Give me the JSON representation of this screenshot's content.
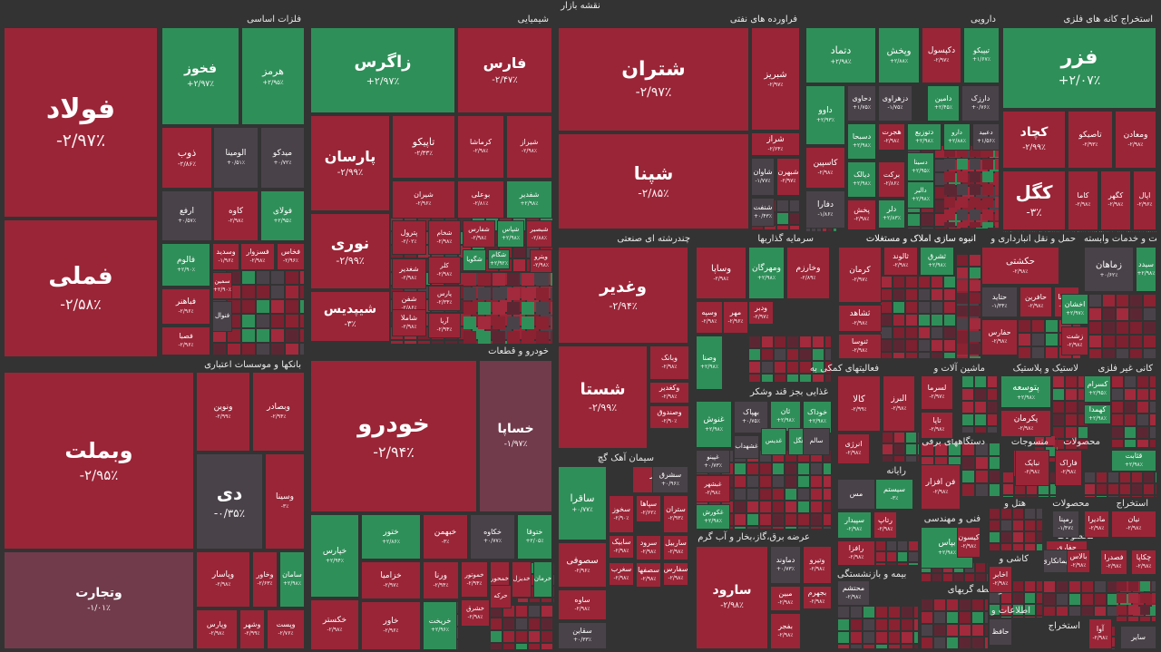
{
  "title": "نقشه بازار",
  "colors": {
    "red": "#9a2537",
    "green": "#2f8f59",
    "neutral": "#4a4249",
    "lightred": "#713b4c",
    "darkred": "#5c2733",
    "background": "#333333"
  },
  "sectors": [
    {
      "name": "فلزات اساسی"
    },
    {
      "name": "شیمیایی"
    },
    {
      "name": "فراورده های نفتی"
    },
    {
      "name": "دارویی"
    },
    {
      "name": "استخراج کانه های فلزی"
    },
    {
      "name": "بانکها و موسسات اعتباری"
    },
    {
      "name": "خودرو و قطعات"
    },
    {
      "name": "چندرشته ای صنعتی"
    },
    {
      "name": "سرمایه گذاریها"
    },
    {
      "name": "انبوه سازی املاک و مستغلات"
    },
    {
      "name": "حمل و نقل انبارداری و"
    },
    {
      "name": "زراعت و خدمات وابسته"
    },
    {
      "name": "فعالیتهای کمکی به"
    },
    {
      "name": "ماشین آلات و"
    },
    {
      "name": "لاستیک و پلاستیک"
    },
    {
      "name": "کانی غیر فلزی"
    },
    {
      "name": "غذایی بجز قند وشکر"
    },
    {
      "name": "سیمان آهک گچ"
    },
    {
      "name": "رایانه"
    },
    {
      "name": "دستگاههای برقی"
    },
    {
      "name": "منسوجات"
    },
    {
      "name": "محصولات"
    },
    {
      "name": "عرضه برق،گاز،بخار و آب گرم"
    },
    {
      "name": "فنی و مهندسی"
    },
    {
      "name": "بیمه و بازنشستگی"
    },
    {
      "name": "هتل و"
    },
    {
      "name": "محصولات"
    },
    {
      "name": "استخراج"
    },
    {
      "name": "کاشی و"
    },
    {
      "name": "محصولات"
    },
    {
      "name": "واسطه گریهای"
    },
    {
      "name": "اطلاعات و"
    },
    {
      "name": "استخراج"
    },
    {
      "name": "انبوه سازی املاک و مستغلات"
    }
  ],
  "cells": [
    {
      "sym": "فولاد",
      "pct": "-۲/۹۷٪",
      "c": "r"
    },
    {
      "sym": "فملی",
      "pct": "-۲/۵۸٪",
      "c": "r"
    },
    {
      "sym": "فخوز",
      "pct": "+۲/۹۷٪",
      "c": "g"
    },
    {
      "sym": "هرمز",
      "pct": "+۲/۹۵٪",
      "c": "g"
    },
    {
      "sym": "ذوب",
      "pct": "-۲/۸۶٪",
      "c": "r"
    },
    {
      "sym": "الومینا",
      "pct": "+۰/۵۱٪",
      "c": "n"
    },
    {
      "sym": "میدکو",
      "pct": "+۰/۷۲٪",
      "c": "n"
    },
    {
      "sym": "ارفع",
      "pct": "+۰/۵۷٪",
      "c": "n"
    },
    {
      "sym": "کاوه",
      "pct": "-۲/۹۸٪",
      "c": "r"
    },
    {
      "sym": "فولای",
      "pct": "+۲/۹۵٪",
      "c": "g"
    },
    {
      "sym": "فالوم",
      "pct": "+۲/۹۰٪",
      "c": "g"
    },
    {
      "sym": "وسدید",
      "pct": "-۱/۹۶٪",
      "c": "r"
    },
    {
      "sym": "فسزوار",
      "pct": "-۲/۹۸٪",
      "c": "r"
    },
    {
      "sym": "فخاس",
      "pct": "-۲/۹۶٪",
      "c": "r"
    },
    {
      "sym": "فباهنر",
      "pct": "-۲/۹۶٪",
      "c": "r"
    },
    {
      "sym": "سمین",
      "pct": "+۲/۹۰٪",
      "c": "r"
    },
    {
      "sym": "فنوال",
      "pct": "",
      "c": "n"
    },
    {
      "sym": "فصبا",
      "pct": "-۲/۹۶٪",
      "c": "r"
    },
    {
      "sym": "زاگرس",
      "pct": "+۲/۹۷٪",
      "c": "g"
    },
    {
      "sym": "فارس",
      "pct": "-۲/۴۷٪",
      "c": "r"
    },
    {
      "sym": "پارسان",
      "pct": "-۲/۹۹٪",
      "c": "r"
    },
    {
      "sym": "تاپیکو",
      "pct": "-۲/۳۳٪",
      "c": "r"
    },
    {
      "sym": "کرماشا",
      "pct": "-۲/۹۸٪",
      "c": "r"
    },
    {
      "sym": "شیراز",
      "pct": "-۲/۹۸٪",
      "c": "r"
    },
    {
      "sym": "شیران",
      "pct": "-۲/۹۶٪",
      "c": "r"
    },
    {
      "sym": "بوعلی",
      "pct": "-۲/۸۱٪",
      "c": "r"
    },
    {
      "sym": "شفدیر",
      "pct": "+۲/۹۸٪",
      "c": "g"
    },
    {
      "sym": "نوری",
      "pct": "-۲/۹۹٪",
      "c": "r"
    },
    {
      "sym": "پترول",
      "pct": "-۲/۰۲٪",
      "c": "r"
    },
    {
      "sym": "شغدیر",
      "pct": "-۲/۹۸٪",
      "c": "r"
    },
    {
      "sym": "شیپدیس",
      "pct": "-۳٪",
      "c": "r"
    },
    {
      "sym": "شفن",
      "pct": "-۲/۸۶٪",
      "c": "r"
    },
    {
      "sym": "شاملا",
      "pct": "-۲/۹۸٪",
      "c": "r"
    },
    {
      "sym": "شفارس",
      "pct": "-۲/۹۸٪",
      "c": "r"
    },
    {
      "sym": "شپاس",
      "pct": "+۲/۹۸٪",
      "c": "g"
    },
    {
      "sym": "شبصیر",
      "pct": "-۲/۸۸٪",
      "c": "r"
    },
    {
      "sym": "شکام",
      "pct": "+۲/۹۲٪",
      "c": "g"
    },
    {
      "sym": "شگویا",
      "pct": "",
      "c": "g"
    },
    {
      "sym": "ویترو",
      "pct": "-۲/۹۸٪",
      "c": "r"
    },
    {
      "sym": "کلر",
      "pct": "-۲/۹۸٪",
      "c": "r"
    },
    {
      "sym": "شخام",
      "pct": "-۲/۹۸٪",
      "c": "r"
    },
    {
      "sym": "پارس",
      "pct": "-۲/۳۴٪",
      "c": "r"
    },
    {
      "sym": "آریا",
      "pct": "-۲/۹۴٪",
      "c": "r"
    },
    {
      "sym": "شتران",
      "pct": "-۲/۹۷٪",
      "c": "r"
    },
    {
      "sym": "شپنا",
      "pct": "-۲/۸۵٪",
      "c": "r"
    },
    {
      "sym": "شبریز",
      "pct": "-۲/۹۷٪",
      "c": "r"
    },
    {
      "sym": "شراز",
      "pct": "-۲/۶۴٪",
      "c": "r"
    },
    {
      "sym": "شاوان",
      "pct": "-۱/۷۷٪",
      "c": "n"
    },
    {
      "sym": "شبهرن",
      "pct": "-۲/۹۷٪",
      "c": "r"
    },
    {
      "sym": "شنفت",
      "pct": "+۰/۴۳٪",
      "c": "n"
    },
    {
      "sym": "دتماد",
      "pct": "+۲/۹۸٪",
      "c": "g"
    },
    {
      "sym": "وپخش",
      "pct": "+۲/۸۸٪",
      "c": "g"
    },
    {
      "sym": "دکپسول",
      "pct": "-۲/۹۷٪",
      "c": "r"
    },
    {
      "sym": "تیپیکو",
      "pct": "+۱/۶۷٪",
      "c": "g"
    },
    {
      "sym": "داوو",
      "pct": "+۲/۹۳٪",
      "c": "g"
    },
    {
      "sym": "دحاوی",
      "pct": "+۱/۷۵٪",
      "c": "n"
    },
    {
      "sym": "دزهراوی",
      "pct": "-۱/۷۵٪",
      "c": "n"
    },
    {
      "sym": "دامین",
      "pct": "+۲/۴۵٪",
      "c": "g"
    },
    {
      "sym": "دارزک",
      "pct": "+۰/۷۶٪",
      "c": "n"
    },
    {
      "sym": "دسبحا",
      "pct": "+۲/۹۸٪",
      "c": "g"
    },
    {
      "sym": "هجرت",
      "pct": "-۲/۹۸٪",
      "c": "r"
    },
    {
      "sym": "دتوزیع",
      "pct": "+۲/۹۸٪",
      "c": "g"
    },
    {
      "sym": "دارو",
      "pct": "+۲/۸۸٪",
      "c": "g"
    },
    {
      "sym": "دعبید",
      "pct": "+۱/۵۶٪",
      "c": "n"
    },
    {
      "sym": "کاسپین",
      "pct": "-۲/۹۸٪",
      "c": "r"
    },
    {
      "sym": "دیالک",
      "pct": "+۲/۹۸٪",
      "c": "g"
    },
    {
      "sym": "برکت",
      "pct": "-۲/۸۶٪",
      "c": "r"
    },
    {
      "sym": "دسینا",
      "pct": "+۲/۹۵٪",
      "c": "g"
    },
    {
      "sym": "دفارا",
      "pct": "-۱/۸۶٪",
      "c": "n"
    },
    {
      "sym": "پخش",
      "pct": "-۲/۹۸٪",
      "c": "r"
    },
    {
      "sym": "دلر",
      "pct": "+۲/۸۳٪",
      "c": "g"
    },
    {
      "sym": "دالبر",
      "pct": "+۲/۹۸٪",
      "c": "g"
    },
    {
      "sym": "فزر",
      "pct": "+۲/۰۷٪",
      "c": "g"
    },
    {
      "sym": "کچاد",
      "pct": "-۲/۹۹٪",
      "c": "r"
    },
    {
      "sym": "تاصیکو",
      "pct": "-۲/۹۳٪",
      "c": "r"
    },
    {
      "sym": "ومعادن",
      "pct": "-۲/۹۸٪",
      "c": "r"
    },
    {
      "sym": "کگل",
      "pct": "-۳٪",
      "c": "r"
    },
    {
      "sym": "کاما",
      "pct": "-۲/۹۸٪",
      "c": "r"
    },
    {
      "sym": "کگهر",
      "pct": "-۲/۹۸٪",
      "c": "r"
    },
    {
      "sym": "اپال",
      "pct": "-۲/۹۶٪",
      "c": "r"
    },
    {
      "sym": "وبملت",
      "pct": "-۲/۹۵٪",
      "c": "r"
    },
    {
      "sym": "ونوین",
      "pct": "-۲/۹۹٪",
      "c": "r"
    },
    {
      "sym": "وبصادر",
      "pct": "-۲/۹۴٪",
      "c": "r"
    },
    {
      "sym": "دی",
      "pct": "-۰/۳۵٪",
      "c": "n"
    },
    {
      "sym": "وسینا",
      "pct": "-۳٪",
      "c": "r"
    },
    {
      "sym": "وتجارت",
      "pct": "-۱/۰۱٪",
      "c": "l"
    },
    {
      "sym": "وپاسار",
      "pct": "-۲/۹۸٪",
      "c": "r"
    },
    {
      "sym": "وخاور",
      "pct": "-۲/۶۳٪",
      "c": "r"
    },
    {
      "sym": "سامان",
      "pct": "+۲/۹۸٪",
      "c": "g"
    },
    {
      "sym": "وشهر",
      "pct": "-۲/۹۹٪",
      "c": "r"
    },
    {
      "sym": "وپست",
      "pct": "-۲/۷۶٪",
      "c": "r"
    },
    {
      "sym": "وپارس",
      "pct": "-۲/۹۸٪",
      "c": "r"
    },
    {
      "sym": "خودرو",
      "pct": "-۲/۹۴٪",
      "c": "r"
    },
    {
      "sym": "خساپا",
      "pct": "-۱/۹۷٪",
      "c": "l"
    },
    {
      "sym": "خپارس",
      "pct": "+۲/۹۴٪",
      "c": "g"
    },
    {
      "sym": "ختور",
      "pct": "+۲/۸۶٪",
      "c": "g"
    },
    {
      "sym": "خبهمن",
      "pct": "-۳٪",
      "c": "r"
    },
    {
      "sym": "خکاوه",
      "pct": "+۰/۷۷٪",
      "c": "n"
    },
    {
      "sym": "ختوقا",
      "pct": "+۲/۰۵٪",
      "c": "g"
    },
    {
      "sym": "خزامیا",
      "pct": "-۲/۹۷٪",
      "c": "r"
    },
    {
      "sym": "ورنا",
      "pct": "-۲/۹۴٪",
      "c": "r"
    },
    {
      "sym": "خموتور",
      "pct": "-۲/۹۴٪",
      "c": "r"
    },
    {
      "sym": "خمحور",
      "pct": "",
      "c": "r"
    },
    {
      "sym": "خدیزل",
      "pct": "",
      "c": "r"
    },
    {
      "sym": "خرمان",
      "pct": "",
      "c": "g"
    },
    {
      "sym": "خکستر",
      "pct": "-۲/۹۸٪",
      "c": "r"
    },
    {
      "sym": "خاور",
      "pct": "-۲/۹۶٪",
      "c": "r"
    },
    {
      "sym": "خریخت",
      "pct": "+۲/۹۶٪",
      "c": "g"
    },
    {
      "sym": "خشرق",
      "pct": "-۲/۹۸٪",
      "c": "r"
    },
    {
      "sym": "حرکه",
      "pct": "",
      "c": "r"
    },
    {
      "sym": "وغدیر",
      "pct": "-۲/۹۴٪",
      "c": "r"
    },
    {
      "sym": "شستا",
      "pct": "-۲/۹۹٪",
      "c": "r"
    },
    {
      "sym": "وبانک",
      "pct": "-۲/۹۸٪",
      "c": "r"
    },
    {
      "sym": "وکغدیر",
      "pct": "-۲/۹۸٪",
      "c": "r"
    },
    {
      "sym": "وصندوق",
      "pct": "-۲/۹۰٪",
      "c": "r"
    },
    {
      "sym": "وساپا",
      "pct": "-۲/۹۸٪",
      "c": "r"
    },
    {
      "sym": "ومهرگان",
      "pct": "+۲/۹۸٪",
      "c": "g"
    },
    {
      "sym": "وخارزم",
      "pct": "-۲/۸۹٪",
      "c": "r"
    },
    {
      "sym": "وسپه",
      "pct": "-۲/۹۸٪",
      "c": "r"
    },
    {
      "sym": "مهر",
      "pct": "-۲/۹۶٪",
      "c": "r"
    },
    {
      "sym": "ودبر",
      "pct": "-۲/۹۷٪",
      "c": "r"
    },
    {
      "sym": "وصنا",
      "pct": "+۲/۹۸٪",
      "c": "g"
    },
    {
      "sym": "کرمان",
      "pct": "-۲/۹۷٪",
      "c": "r"
    },
    {
      "sym": "ثالوند",
      "pct": "-۲/۹۸٪",
      "c": "r"
    },
    {
      "sym": "ثشرق",
      "pct": "+۲/۹۸٪",
      "c": "g"
    },
    {
      "sym": "ثشاهد",
      "pct": "-۲/۹۸٪",
      "c": "r"
    },
    {
      "sym": "ثنوسا",
      "pct": "-۲/۹۸٪",
      "c": "r"
    },
    {
      "sym": "حکشتی",
      "pct": "-۲/۹۸٪",
      "c": "r"
    },
    {
      "sym": "حتاید",
      "pct": "-۱/۳۴٪",
      "c": "n"
    },
    {
      "sym": "حافرین",
      "pct": "-۲/۹۸٪",
      "c": "r"
    },
    {
      "sym": "حسینا",
      "pct": "-۲/۹۷٪",
      "c": "r"
    },
    {
      "sym": "حفارس",
      "pct": "-۲/۹۸٪",
      "c": "r"
    },
    {
      "sym": "زماهان",
      "pct": "+۰/۶۲٪",
      "c": "n"
    },
    {
      "sym": "سیدد",
      "pct": "+۲/۹۸٪",
      "c": "g"
    },
    {
      "sym": "اخشان",
      "pct": "+۲/۹۷٪",
      "c": "g"
    },
    {
      "sym": "زشت",
      "pct": "-۲/۹۸٪",
      "c": "r"
    },
    {
      "sym": "کالا",
      "pct": "-۲/۹۹٪",
      "c": "r"
    },
    {
      "sym": "البرز",
      "pct": "-۲/۹۸٪",
      "c": "r"
    },
    {
      "sym": "انرژی",
      "pct": "-۲/۹۸٪",
      "c": "r"
    },
    {
      "sym": "لسرما",
      "pct": "-۲/۹۷٪",
      "c": "r"
    },
    {
      "sym": "تاپا",
      "pct": "-۲/۹۸٪",
      "c": "r"
    },
    {
      "sym": "پتوسعه",
      "pct": "+۲/۹۸٪",
      "c": "g"
    },
    {
      "sym": "پکرمان",
      "pct": "-۲/۹۸٪",
      "c": "r"
    },
    {
      "sym": "کسرام",
      "pct": "+۲/۹۵٪",
      "c": "g"
    },
    {
      "sym": "کهمدا",
      "pct": "+۲/۹۸٪",
      "c": "g"
    },
    {
      "sym": "فاراک",
      "pct": "-۲/۹۸٪",
      "c": "r"
    },
    {
      "sym": "قثابت",
      "pct": "+۲/۹۸٪",
      "c": "g"
    },
    {
      "sym": "غنوش",
      "pct": "+۲/۹۸٪",
      "c": "g"
    },
    {
      "sym": "بهپاک",
      "pct": "+۰/۷۵٪",
      "c": "n"
    },
    {
      "sym": "ثان",
      "pct": "+۲/۹۸٪",
      "c": "g"
    },
    {
      "sym": "خوداک",
      "pct": "+۲/۹۸٪",
      "c": "g"
    },
    {
      "sym": "غشهداب",
      "pct": "",
      "c": "n"
    },
    {
      "sym": "غگل",
      "pct": "",
      "c": "g"
    },
    {
      "sym": "غدیس",
      "pct": "",
      "c": "g"
    },
    {
      "sym": "غپینو",
      "pct": "+۰/۷۳٪",
      "c": "n"
    },
    {
      "sym": "غبشهر",
      "pct": "-۲/۹۸٪",
      "c": "r"
    },
    {
      "sym": "غکورش",
      "pct": "+۲/۹۸٪",
      "c": "g"
    },
    {
      "sym": "سالم",
      "pct": "",
      "c": "n"
    },
    {
      "sym": "سخزر",
      "pct": "-۲/۹۸٪",
      "c": "r"
    },
    {
      "sym": "سشرق",
      "pct": "+۰/۹۶٪",
      "c": "n"
    },
    {
      "sym": "ساقرا",
      "pct": "+۰/۷۷٪",
      "c": "g"
    },
    {
      "sym": "سخوز",
      "pct": "-۲/۹۰٪",
      "c": "r"
    },
    {
      "sym": "سپاها",
      "pct": "-۲/۶۲٪",
      "c": "r"
    },
    {
      "sym": "ستران",
      "pct": "-۲/۹۳٪",
      "c": "r"
    },
    {
      "sym": "ساربیل",
      "pct": "-۲/۹۸٪",
      "c": "r"
    },
    {
      "sym": "سابیک",
      "pct": "-۲/۹۸٪",
      "c": "r"
    },
    {
      "sym": "سرود",
      "pct": "-۲/۹۸٪",
      "c": "r"
    },
    {
      "sym": "سفارس",
      "pct": "-۲/۹۸٪",
      "c": "r"
    },
    {
      "sym": "سصوفی",
      "pct": "-۲/۹۶٪",
      "c": "r"
    },
    {
      "sym": "سغرب",
      "pct": "-۲/۹۸٪",
      "c": "r"
    },
    {
      "sym": "سصفها",
      "pct": "-۲/۹۸٪",
      "c": "r"
    },
    {
      "sym": "ساوه",
      "pct": "-۲/۹۸٪",
      "c": "r"
    },
    {
      "sym": "سقاین",
      "pct": "+۰/۳۳٪",
      "c": "n"
    },
    {
      "sym": "سارود",
      "pct": "-۲/۹۸٪",
      "c": "r"
    },
    {
      "sym": "دماوند",
      "pct": "+۰/۷۳٪",
      "c": "n"
    },
    {
      "sym": "وتیرو",
      "pct": "-۲/۹۸٪",
      "c": "r"
    },
    {
      "sym": "مبین",
      "pct": "-۲/۹۸٪",
      "c": "r"
    },
    {
      "sym": "بجهرم",
      "pct": "-۲/۹۸٪",
      "c": "r"
    },
    {
      "sym": "بفجر",
      "pct": "-۲/۹۸٪",
      "c": "r"
    },
    {
      "sym": "مس",
      "pct": "",
      "c": "n"
    },
    {
      "sym": "سیستم",
      "pct": "-۳٪",
      "c": "g"
    },
    {
      "sym": "سپیدار",
      "pct": "-۲/۹۸٪",
      "c": "g"
    },
    {
      "sym": "رتاپ",
      "pct": "-۲/۹۸٪",
      "c": "r"
    },
    {
      "sym": "رافزا",
      "pct": "-۲/۹۸٪",
      "c": "r"
    },
    {
      "sym": "فن افزار",
      "pct": "-۲/۹۸٪",
      "c": "r"
    },
    {
      "sym": "بترانس",
      "pct": "-۲/۹۸٪",
      "c": "r"
    },
    {
      "sym": "نبایک",
      "pct": "-۲/۹۸٪",
      "c": "r"
    },
    {
      "sym": "محتشم",
      "pct": "-۲/۹۸٪",
      "c": "n"
    },
    {
      "sym": "بپاس",
      "pct": "+۲/۹۸٪",
      "c": "g"
    },
    {
      "sym": "کیسون",
      "pct": "-۲/۹۸٪",
      "c": "r"
    },
    {
      "sym": "رمپنا",
      "pct": "-۱/۴۷٪",
      "c": "n"
    },
    {
      "sym": "مادیرا",
      "pct": "-۲/۹۸٪",
      "c": "r"
    },
    {
      "sym": "نیان",
      "pct": "-۲/۹۸٪",
      "c": "r"
    },
    {
      "sym": "حفاری",
      "pct": "-۲/۹۸٪",
      "c": "r"
    },
    {
      "sym": "پیمانکاری",
      "pct": "",
      "c": "n"
    },
    {
      "sym": "بالاس",
      "pct": "-۲/۹۸٪",
      "c": "r"
    },
    {
      "sym": "فصدرا",
      "pct": "-۲/۹۸٪",
      "c": "r"
    },
    {
      "sym": "چکاپا",
      "pct": "-۲/۹۸٪",
      "c": "r"
    },
    {
      "sym": "اخابر",
      "pct": "-۲/۹۸٪",
      "c": "r"
    },
    {
      "sym": "حافظ",
      "pct": "",
      "c": "n"
    },
    {
      "sym": "آوا",
      "pct": "-۲/۹۸٪",
      "c": "r"
    },
    {
      "sym": "سایر",
      "pct": "",
      "c": "n"
    },
    {
      "sym": "محصو",
      "pct": "",
      "c": "n"
    }
  ]
}
